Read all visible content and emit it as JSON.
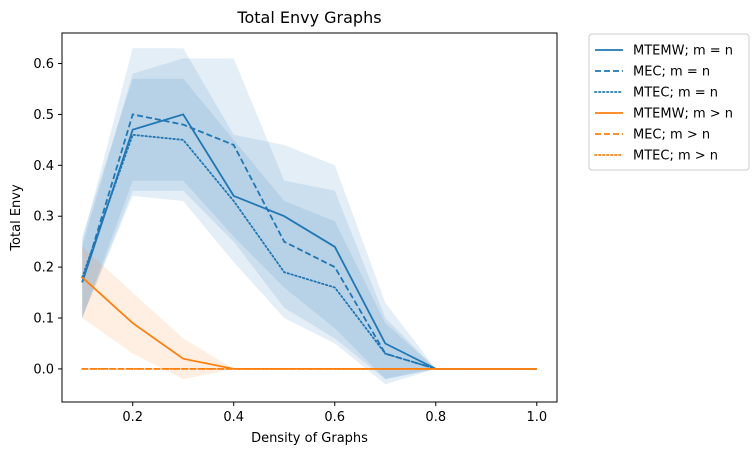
{
  "chart_data": {
    "type": "line",
    "title": "Total Envy Graphs",
    "xlabel": "Density of Graphs",
    "ylabel": "Total Envy",
    "xlim": [
      0.06,
      1.04
    ],
    "ylim": [
      -0.065,
      0.66
    ],
    "xticks": [
      0.2,
      0.4,
      0.6,
      0.8,
      1.0
    ],
    "xtick_labels": [
      "0.2",
      "0.4",
      "0.6",
      "0.8",
      "1.0"
    ],
    "yticks": [
      0.0,
      0.1,
      0.2,
      0.3,
      0.4,
      0.5,
      0.6
    ],
    "ytick_labels": [
      "0.0",
      "0.1",
      "0.2",
      "0.3",
      "0.4",
      "0.5",
      "0.6"
    ],
    "grid": false,
    "legend_position": "outside-top-right",
    "x": [
      0.1,
      0.2,
      0.3,
      0.4,
      0.5,
      0.6,
      0.7,
      0.8,
      0.9,
      1.0
    ],
    "series": [
      {
        "name": "MTEMW; m = n",
        "color": "#1f77b4",
        "dash": "solid",
        "values": [
          0.17,
          0.47,
          0.5,
          0.34,
          0.3,
          0.24,
          0.05,
          0.0,
          0.0,
          0.0
        ],
        "ci_lower": [
          0.1,
          0.37,
          0.37,
          0.26,
          0.16,
          0.08,
          -0.02,
          0.0,
          0.0,
          0.0
        ],
        "ci_upper": [
          0.25,
          0.63,
          0.63,
          0.46,
          0.44,
          0.4,
          0.13,
          0.0,
          0.0,
          0.0
        ]
      },
      {
        "name": "MEC; m = n",
        "color": "#1f77b4",
        "dash": "dashed",
        "values": [
          0.17,
          0.5,
          0.48,
          0.44,
          0.25,
          0.2,
          0.03,
          0.0,
          0.0,
          0.0
        ],
        "ci_lower": [
          0.1,
          0.35,
          0.35,
          0.25,
          0.12,
          0.06,
          -0.02,
          0.0,
          0.0,
          0.0
        ],
        "ci_upper": [
          0.24,
          0.58,
          0.61,
          0.61,
          0.37,
          0.35,
          0.1,
          0.0,
          0.0,
          0.0
        ]
      },
      {
        "name": "MTEC; m = n",
        "color": "#1f77b4",
        "dash": "dotted",
        "values": [
          0.18,
          0.46,
          0.45,
          0.33,
          0.19,
          0.16,
          0.03,
          0.0,
          0.0,
          0.0
        ],
        "ci_lower": [
          0.1,
          0.34,
          0.33,
          0.21,
          0.1,
          0.05,
          -0.03,
          0.0,
          0.0,
          0.0
        ],
        "ci_upper": [
          0.26,
          0.57,
          0.57,
          0.45,
          0.33,
          0.29,
          0.09,
          0.0,
          0.0,
          0.0
        ]
      },
      {
        "name": "MTEMW; m > n",
        "color": "#ff7f0e",
        "dash": "solid",
        "values": [
          0.18,
          0.09,
          0.02,
          0.0,
          0.0,
          0.0,
          0.0,
          0.0,
          0.0,
          0.0
        ],
        "ci_lower": [
          0.1,
          0.03,
          -0.02,
          0.0,
          0.0,
          0.0,
          0.0,
          0.0,
          0.0,
          0.0
        ],
        "ci_upper": [
          0.24,
          0.15,
          0.06,
          0.0,
          0.0,
          0.0,
          0.0,
          0.0,
          0.0,
          0.0
        ]
      },
      {
        "name": "MEC; m > n",
        "color": "#ff7f0e",
        "dash": "dashed",
        "values": [
          0.0,
          0.0,
          0.0,
          0.0,
          0.0,
          0.0,
          0.0,
          0.0,
          0.0,
          0.0
        ],
        "ci_lower": [
          0.0,
          0.0,
          0.0,
          0.0,
          0.0,
          0.0,
          0.0,
          0.0,
          0.0,
          0.0
        ],
        "ci_upper": [
          0.0,
          0.0,
          0.0,
          0.0,
          0.0,
          0.0,
          0.0,
          0.0,
          0.0,
          0.0
        ]
      },
      {
        "name": "MTEC; m > n",
        "color": "#ff7f0e",
        "dash": "dotted",
        "values": [
          0.0,
          0.0,
          0.0,
          0.0,
          0.0,
          0.0,
          0.0,
          0.0,
          0.0,
          0.0
        ],
        "ci_lower": [
          0.0,
          0.0,
          0.0,
          0.0,
          0.0,
          0.0,
          0.0,
          0.0,
          0.0,
          0.0
        ],
        "ci_upper": [
          0.0,
          0.0,
          0.0,
          0.0,
          0.0,
          0.0,
          0.0,
          0.0,
          0.0,
          0.0
        ]
      }
    ]
  }
}
